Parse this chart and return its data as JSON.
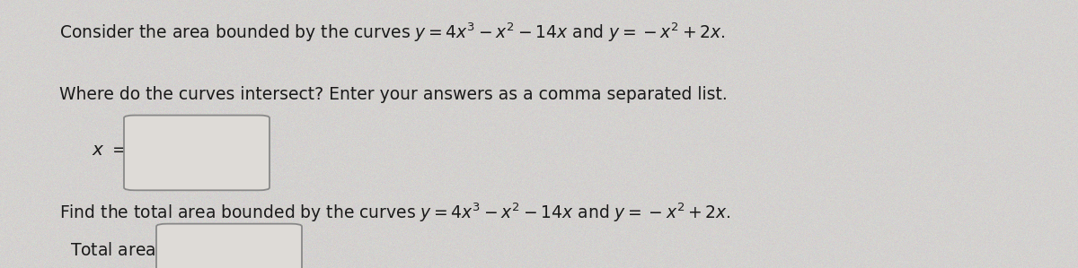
{
  "bg_color": "#d4d0cc",
  "text_color": "#1a1a1a",
  "line1_plain": "Consider the area bounded by the curves ",
  "line1_math": "y = 4x^3 - x^2 - 14x",
  "line1_and": " and ",
  "line1_math2": "y = -x^2 + 2x",
  "line1_end": ".",
  "line2": "Where do the curves intersect? Enter your answers as a comma separated list.",
  "line4_plain": "Find the total area bounded by the curves",
  "line4_math": "y = 4x^3 - x^2 - 14x",
  "line4_and": " and ",
  "line4_math2": "y = -x^2 + 2x",
  "line4_end": ".",
  "font_size_main": 13.5,
  "box_edge_color": "#888888",
  "box_face_color": "#dedbd7"
}
